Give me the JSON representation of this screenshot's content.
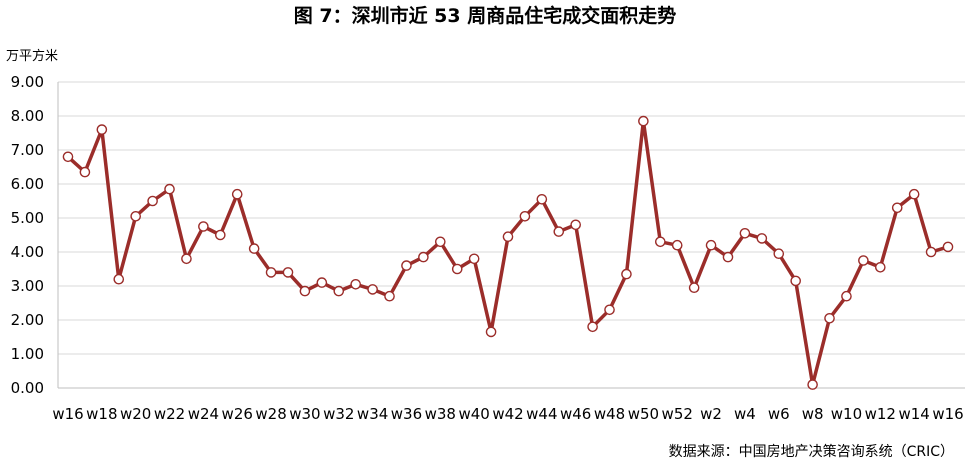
{
  "chart_data": {
    "type": "line",
    "title": "图 7：深圳市近 53 周商品住宅成交面积走势",
    "unit_label": "万平方米",
    "source": "数据来源：中国房地产决策咨询系统（CRIC）",
    "ylim": [
      0,
      9
    ],
    "yticks": [
      "0.00",
      "1.00",
      "2.00",
      "3.00",
      "4.00",
      "5.00",
      "6.00",
      "7.00",
      "8.00",
      "9.00"
    ],
    "x_tick_labels": [
      "w16",
      "w18",
      "w20",
      "w22",
      "w24",
      "w26",
      "w28",
      "w30",
      "w32",
      "w34",
      "w36",
      "w38",
      "w40",
      "w42",
      "w44",
      "w46",
      "w48",
      "w50",
      "w52",
      "w2",
      "w4",
      "w6",
      "w8",
      "w10",
      "w12",
      "w14",
      "w16"
    ],
    "categories": [
      "w16",
      "w17",
      "w18",
      "w19",
      "w20",
      "w21",
      "w22",
      "w23",
      "w24",
      "w25",
      "w26",
      "w27",
      "w28",
      "w29",
      "w30",
      "w31",
      "w32",
      "w33",
      "w34",
      "w35",
      "w36",
      "w37",
      "w38",
      "w39",
      "w40",
      "w41",
      "w42",
      "w43",
      "w44",
      "w45",
      "w46",
      "w47",
      "w48",
      "w49",
      "w50",
      "w51",
      "w52",
      "w1",
      "w2",
      "w3",
      "w4",
      "w5",
      "w6",
      "w7",
      "w8",
      "w9",
      "w10",
      "w11",
      "w12",
      "w13",
      "w14",
      "w15",
      "w16"
    ],
    "series": [
      {
        "values": [
          6.8,
          6.35,
          7.6,
          3.2,
          5.05,
          5.5,
          5.85,
          3.8,
          4.75,
          4.5,
          5.7,
          4.1,
          3.4,
          3.4,
          2.85,
          3.1,
          2.85,
          3.05,
          2.9,
          2.7,
          3.6,
          3.85,
          4.3,
          3.5,
          3.8,
          1.65,
          4.45,
          5.05,
          5.55,
          4.6,
          4.8,
          1.8,
          2.3,
          3.35,
          7.85,
          4.3,
          4.2,
          2.95,
          4.2,
          3.85,
          4.55,
          4.4,
          3.95,
          3.15,
          0.1,
          2.05,
          2.7,
          3.75,
          3.55,
          5.3,
          5.7,
          4.0,
          4.15
        ]
      }
    ],
    "colors": {
      "line": "#9b2d2a",
      "marker_fill": "#ffffff",
      "marker_stroke": "#9b2d2a",
      "grid": "#d9d9d9",
      "axis": "#bfbfbf"
    },
    "grid": true,
    "legend": "none"
  }
}
